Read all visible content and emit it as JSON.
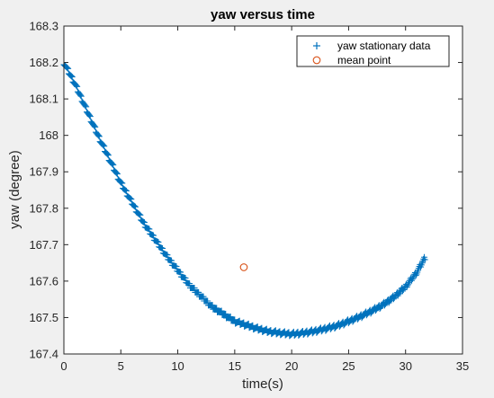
{
  "chart_data": {
    "type": "scatter",
    "title": "yaw versus time",
    "xlabel": "time(s)",
    "ylabel": "yaw (degree)",
    "xlim": [
      0,
      35
    ],
    "ylim": [
      167.4,
      168.3
    ],
    "xticks": [
      0,
      5,
      10,
      15,
      20,
      25,
      30,
      35
    ],
    "xtick_labels": [
      "0",
      "5",
      "10",
      "15",
      "20",
      "25",
      "30",
      "35"
    ],
    "yticks": [
      167.4,
      167.5,
      167.6,
      167.7,
      167.8,
      167.9,
      168.0,
      168.1,
      168.2,
      168.3
    ],
    "ytick_labels": [
      "167.4",
      "167.5",
      "167.6",
      "167.7",
      "167.8",
      "167.9",
      "168",
      "168.1",
      "168.2",
      "168.3"
    ],
    "grid": false,
    "legend_position": "top-right",
    "series": [
      {
        "name": "yaw stationary data",
        "marker": "plus",
        "color": "#0072bd",
        "x": [
          0,
          1,
          2,
          3,
          4,
          5,
          6,
          7,
          8,
          9,
          10,
          11,
          12,
          13,
          14,
          15,
          16,
          17,
          18,
          19,
          20,
          21,
          22,
          23,
          24,
          25,
          26,
          27,
          28,
          29,
          30,
          31,
          31.7
        ],
        "y": [
          168.2,
          168.14,
          168.07,
          168.0,
          167.935,
          167.87,
          167.815,
          167.76,
          167.715,
          167.67,
          167.63,
          167.59,
          167.56,
          167.53,
          167.51,
          167.49,
          167.48,
          167.47,
          167.462,
          167.458,
          167.455,
          167.458,
          167.463,
          167.47,
          167.478,
          167.49,
          167.503,
          167.518,
          167.535,
          167.557,
          167.585,
          167.625,
          167.665
        ]
      },
      {
        "name": "mean point",
        "marker": "circle",
        "color": "#d95319",
        "x": [
          15.8
        ],
        "y": [
          167.638
        ]
      }
    ]
  }
}
